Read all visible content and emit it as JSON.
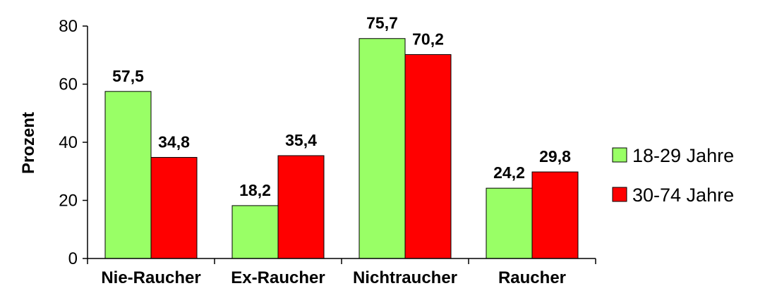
{
  "chart_data": {
    "type": "bar",
    "categories": [
      "Nie-Raucher",
      "Ex-Raucher",
      "Nichtraucher",
      "Raucher"
    ],
    "series": [
      {
        "name": "18-29 Jahre",
        "values": [
          57.5,
          18.2,
          75.7,
          24.2
        ],
        "labels": [
          "57,5",
          "18,2",
          "75,7",
          "24,2"
        ],
        "color": "#99ff66"
      },
      {
        "name": "30-74 Jahre",
        "values": [
          34.8,
          35.4,
          70.2,
          29.8
        ],
        "labels": [
          "34,8",
          "35,4",
          "70,2",
          "29,8"
        ],
        "color": "#ff0000"
      }
    ],
    "ylabel": "Prozent",
    "xlabel": "",
    "ylim": [
      0,
      80
    ],
    "yticks": [
      0,
      20,
      40,
      60,
      80
    ],
    "grid": false,
    "legend": "right"
  }
}
